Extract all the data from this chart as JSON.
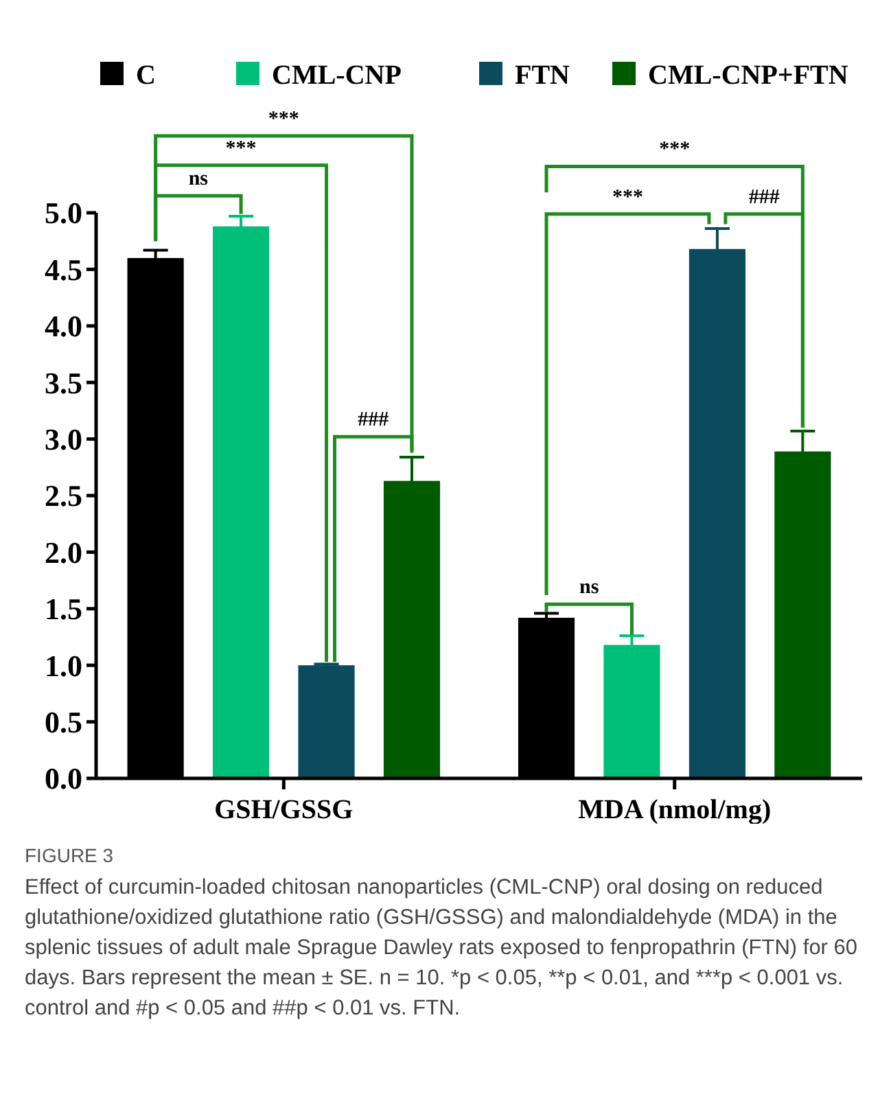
{
  "chart_data": {
    "type": "bar",
    "categories": [
      "GSH/GSSG",
      "MDA (nmol/mg)"
    ],
    "series": [
      {
        "name": "C",
        "color": "#000000",
        "values": [
          4.6,
          1.42
        ],
        "errors": [
          0.07,
          0.04
        ]
      },
      {
        "name": "CML-CNP",
        "color": "#00bf78",
        "values": [
          4.88,
          1.18
        ],
        "errors": [
          0.09,
          0.08
        ]
      },
      {
        "name": "FTN",
        "color": "#0c4a5e",
        "values": [
          1.0,
          4.68
        ],
        "errors": [
          0.01,
          0.18
        ]
      },
      {
        "name": "CML-CNP+FTN",
        "color": "#005a00",
        "values": [
          2.63,
          2.89
        ],
        "errors": [
          0.21,
          0.18
        ]
      }
    ],
    "ylim": [
      0,
      5
    ],
    "yticks": [
      {
        "value": 0,
        "label": "0.0"
      },
      {
        "value": 0.5,
        "label": "0.5"
      },
      {
        "value": 1,
        "label": "1.0"
      },
      {
        "value": 1.5,
        "label": "1.5"
      },
      {
        "value": 2,
        "label": "2.0"
      },
      {
        "value": 2.5,
        "label": "2.5"
      },
      {
        "value": 3,
        "label": "3.0"
      },
      {
        "value": 3.5,
        "label": "3.5"
      },
      {
        "value": 4,
        "label": "4.0"
      },
      {
        "value": 4.5,
        "label": "4.5"
      },
      {
        "value": 5,
        "label": "5.0"
      }
    ],
    "legend": "top",
    "grid": false,
    "annotations": [
      "***",
      "***",
      "ns",
      "###",
      "***",
      "***",
      "###",
      "ns",
      "FIGURE 3",
      "Effect of curcumin-loaded chitosan nanoparticles (CML-CNP) oral dosing on reduced glutathione/oxidized glutathione ratio (GSH/GSSG) and malondialdehyde (MDA) in the splenic tissues of adult male Sprague Dawley rats exposed to fenpropathrin (FTN) for 60 days. Bars represent the mean ± SE. n = 10. *p < 0.05, **p < 0.01, and ***p < 0.001 vs. control and #p < 0.05 and ##p < 0.01 vs. FTN."
    ]
  }
}
